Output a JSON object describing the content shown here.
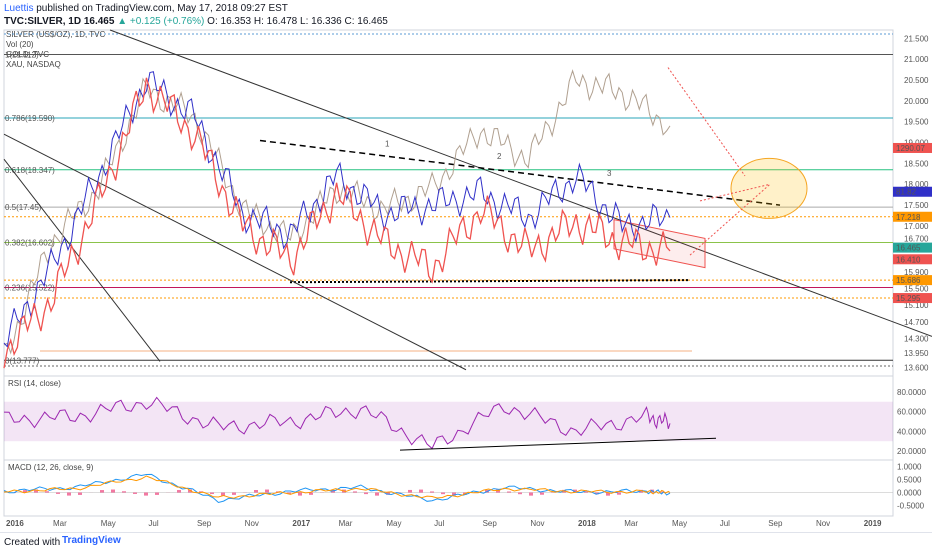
{
  "header": {
    "author": "Luettis",
    "published": "published on TradingView.com, May 17, 2018 09:27 EST",
    "symbol": "TVC:SILVER, 1D",
    "last": "16.465",
    "change": "▲ +0.125 (+0.76%)",
    "ohlc": "O: 16.353 H: 16.478 L: 16.336 C: 16.465"
  },
  "legend": [
    "SILVER (US$/OZ), 1D, TVC",
    "Vol (20)",
    "GOLD, TVC",
    "XAU, NASDAQ"
  ],
  "footer": {
    "created": "Created with",
    "brand": "TradingView"
  },
  "colors": {
    "up": "#26a69a",
    "down": "#ef5350",
    "gold": "#b0a090",
    "xau": "#3030c8",
    "rsi": "#9c27b0",
    "macd": "#2196f3",
    "signal": "#ff9800",
    "hist": "#e91e63"
  },
  "chart_data": [
    {
      "type": "line",
      "pane": "price",
      "x": [
        "2016-01",
        "2016-03",
        "2016-05",
        "2016-07",
        "2016-09",
        "2016-11",
        "2017-01",
        "2017-03",
        "2017-05",
        "2017-07",
        "2017-09",
        "2017-11",
        "2018-01",
        "2018-03",
        "2018-05"
      ],
      "series": [
        {
          "name": "SILVER (US$/OZ), 1D, TVC",
          "values": [
            14.0,
            15.2,
            17.6,
            20.4,
            19.2,
            17.0,
            16.2,
            17.8,
            16.6,
            16.0,
            17.4,
            16.4,
            17.1,
            16.6,
            16.4
          ]
        },
        {
          "name": "GOLD, TVC",
          "values": [
            13.8,
            16.6,
            17.9,
            20.3,
            19.6,
            17.4,
            16.7,
            17.9,
            17.4,
            17.9,
            19.3,
            18.6,
            20.5,
            20.2,
            19.4
          ]
        },
        {
          "name": "XAU, NASDAQ",
          "values": [
            14.2,
            16.0,
            18.2,
            20.5,
            19.6,
            17.3,
            16.8,
            18.2,
            17.3,
            17.5,
            17.8,
            17.2,
            18.2,
            17.0,
            17.2
          ]
        }
      ],
      "ylim": [
        13.4,
        21.7
      ],
      "y_ticks": [
        "21.500",
        "21.000",
        "20.500",
        "20.000",
        "19.500",
        "19.000",
        "18.500",
        "18.000",
        "17.500",
        "17.000",
        "16.700",
        "16.200",
        "15.900",
        "15.500",
        "15.100",
        "14.700",
        "14.300",
        "13.950",
        "13.600"
      ],
      "x_tick_labels": [
        "2016",
        "Mar",
        "May",
        "Jul",
        "Sep",
        "Nov",
        "2017",
        "Mar",
        "May",
        "Jul",
        "Sep",
        "Nov",
        "2018",
        "Mar",
        "May",
        "Jul",
        "Sep",
        "Nov",
        "2019"
      ],
      "fib_labels": [
        "1(21.112)",
        "0.786(19.590)",
        "0.618(18.347)",
        "0.5(17.45)",
        "0.382(16.602)",
        "0.236(15.522)",
        "0(13.777)"
      ],
      "price_tags": [
        {
          "label": "1290.07",
          "value": 18.87,
          "color": "#ef5350"
        },
        {
          "label": "81.82",
          "value": 17.82,
          "color": "#3030c8"
        },
        {
          "label": "17.218",
          "value": 17.22,
          "color": "#ff9800"
        },
        {
          "label": "16.465",
          "value": 16.48,
          "color": "#26a69a"
        },
        {
          "label": "16.410",
          "value": 16.2,
          "color": "#ef5350"
        },
        {
          "label": "15.686",
          "value": 15.7,
          "color": "#ff9800"
        },
        {
          "label": "15.295",
          "value": 15.27,
          "color": "#ef5350"
        }
      ],
      "wave_labels": [
        "1",
        "2",
        "3"
      ]
    },
    {
      "type": "line",
      "pane": "rsi",
      "title": "RSI (14, close)",
      "x": [
        "2016-01",
        "2016-04",
        "2016-07",
        "2016-10",
        "2017-01",
        "2017-04",
        "2017-07",
        "2017-10",
        "2018-01",
        "2018-04",
        "2018-05"
      ],
      "series": [
        {
          "name": "RSI",
          "values": [
            52,
            55,
            70,
            44,
            50,
            63,
            24,
            66,
            40,
            55,
            48
          ]
        }
      ],
      "ylim": [
        15,
        92
      ],
      "y_ticks": [
        "80.0000",
        "60.0000",
        "40.0000",
        "20.0000"
      ],
      "bands": [
        70,
        30
      ]
    },
    {
      "type": "line",
      "pane": "macd",
      "title": "MACD (12, 26, close, 9)",
      "x": [
        "2016-01",
        "2016-04",
        "2016-07",
        "2016-10",
        "2017-01",
        "2017-04",
        "2017-07",
        "2017-10",
        "2018-01",
        "2018-04",
        "2018-05"
      ],
      "series": [
        {
          "name": "MACD",
          "values": [
            0.05,
            0.2,
            0.7,
            -0.3,
            0.05,
            0.2,
            -0.3,
            0.2,
            0.02,
            0.05,
            -0.02
          ]
        },
        {
          "name": "Signal",
          "values": [
            0.03,
            0.15,
            0.6,
            -0.2,
            0.0,
            0.15,
            -0.22,
            0.15,
            0.04,
            0.03,
            0.0
          ]
        }
      ],
      "ylim": [
        -0.75,
        1.1
      ],
      "y_ticks": [
        "1.0000",
        "0.5000",
        "0.0000",
        "-0.5000"
      ]
    }
  ]
}
